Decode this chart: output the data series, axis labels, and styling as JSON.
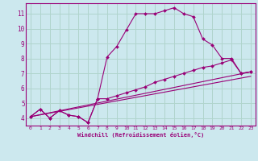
{
  "xlabel": "Windchill (Refroidissement éolien,°C)",
  "bg_color": "#cce8ee",
  "grid_color": "#b0d4cc",
  "line_color": "#990077",
  "xlim": [
    -0.5,
    23.5
  ],
  "ylim": [
    3.5,
    11.7
  ],
  "yticks": [
    4,
    5,
    6,
    7,
    8,
    9,
    10,
    11
  ],
  "xticks": [
    0,
    1,
    2,
    3,
    4,
    5,
    6,
    7,
    8,
    9,
    10,
    11,
    12,
    13,
    14,
    15,
    16,
    17,
    18,
    19,
    20,
    21,
    22,
    23
  ],
  "lines": [
    {
      "x": [
        0,
        1,
        2,
        3,
        4,
        5,
        6,
        7,
        8,
        9,
        10,
        11,
        12,
        13,
        14,
        15,
        16,
        17,
        18,
        19,
        20,
        21,
        22,
        23
      ],
      "y": [
        4.1,
        4.6,
        4.0,
        4.5,
        4.2,
        4.1,
        3.7,
        5.3,
        8.1,
        8.8,
        9.9,
        11.0,
        11.0,
        11.0,
        11.2,
        11.4,
        11.0,
        10.8,
        9.3,
        8.9,
        8.0,
        8.0,
        7.0,
        7.1
      ],
      "has_markers": true
    },
    {
      "x": [
        0,
        1,
        2,
        3,
        4,
        5,
        6,
        7,
        8,
        9,
        10,
        11,
        12,
        13,
        14,
        15,
        16,
        17,
        18,
        19,
        20,
        21,
        22,
        23
      ],
      "y": [
        4.1,
        4.6,
        4.0,
        4.5,
        4.2,
        4.1,
        3.7,
        5.3,
        5.3,
        5.5,
        5.7,
        5.9,
        6.1,
        6.4,
        6.6,
        6.8,
        7.0,
        7.2,
        7.4,
        7.5,
        7.7,
        7.9,
        7.0,
        7.1
      ],
      "has_markers": true
    },
    {
      "x": [
        0,
        23
      ],
      "y": [
        4.1,
        7.1
      ],
      "has_markers": false
    },
    {
      "x": [
        0,
        23
      ],
      "y": [
        4.1,
        6.8
      ],
      "has_markers": false
    }
  ]
}
